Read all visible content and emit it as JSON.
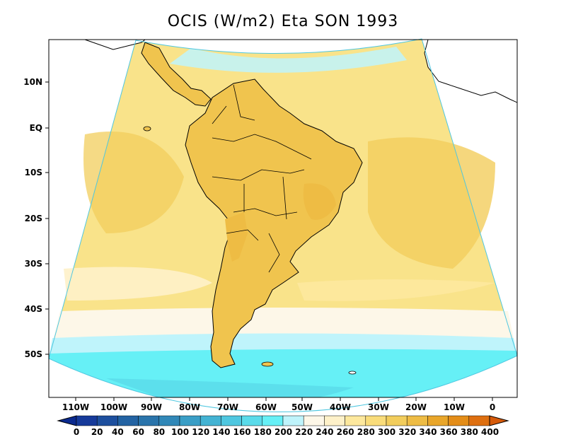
{
  "title": "OCIS (W/m2) Eta SON 1993",
  "lat_labels": [
    "10N",
    "EQ",
    "10S",
    "20S",
    "30S",
    "40S",
    "50S"
  ],
  "lon_labels": [
    "110W",
    "100W",
    "90W",
    "80W",
    "70W",
    "60W",
    "50W",
    "40W",
    "30W",
    "20W",
    "10W",
    "0"
  ],
  "colorbar": {
    "levels": [
      0,
      20,
      40,
      60,
      80,
      100,
      120,
      140,
      160,
      180,
      200,
      220,
      240,
      260,
      280,
      300,
      320,
      340,
      360,
      380,
      400
    ],
    "colors": [
      "#0b2a8f",
      "#163a9a",
      "#1d4f9e",
      "#2363a3",
      "#2a74ab",
      "#3188b8",
      "#3a9ec6",
      "#43b3d3",
      "#4fc7e0",
      "#5adbea",
      "#66f0f6",
      "#bff4fb",
      "#fdf7e8",
      "#fef1c9",
      "#fde89d",
      "#f9dc7a",
      "#f2cd5c",
      "#eebc44",
      "#e9a62a",
      "#e48d18",
      "#de6f10",
      "#d65a0a"
    ]
  },
  "colors": {
    "land_border": "#000000",
    "ocean_coast": "#66f0f6"
  }
}
